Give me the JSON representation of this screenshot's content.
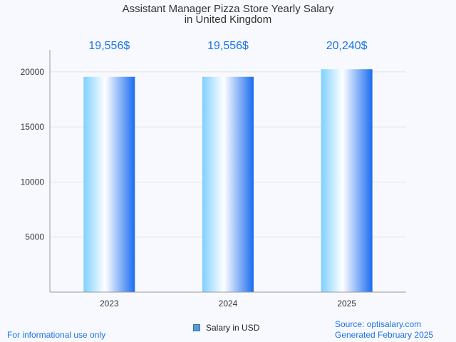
{
  "chart_data": {
    "type": "bar",
    "title": "Assistant Manager Pizza Store Yearly Salary",
    "subtitle": "in United Kingdom",
    "categories": [
      "2023",
      "2024",
      "2025"
    ],
    "series": [
      {
        "name": "Salary in USD",
        "values": [
          19556,
          19556,
          20240
        ],
        "labels": [
          "19,556$",
          "19,556$",
          "20,240$"
        ]
      }
    ],
    "y_ticks": [
      "5000",
      "10000",
      "15000",
      "20000"
    ],
    "ylim": [
      0,
      22000
    ],
    "grid": true,
    "legend_position": "bottom-center"
  },
  "footer": {
    "disclaimer": "For informational use only",
    "source": "Source: optisalary.com",
    "generated": "Generated February 2025"
  },
  "colors": {
    "accent": "#1a73e8",
    "bar_light": "#ffffff",
    "bar_mid": "#7fd0ff",
    "bar_dark": "#1a6cf0"
  }
}
